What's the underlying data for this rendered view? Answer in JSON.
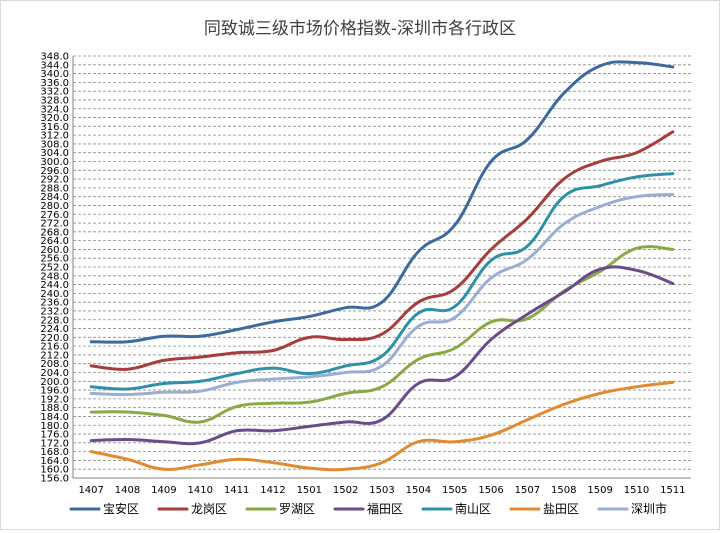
{
  "chart_data": {
    "type": "line",
    "title": "同致诚三级市场价格指数-深圳市各行政区",
    "categories": [
      "1407",
      "1408",
      "1409",
      "1410",
      "1411",
      "1412",
      "1501",
      "1502",
      "1503",
      "1504",
      "1505",
      "1506",
      "1507",
      "1508",
      "1509",
      "1510",
      "1511"
    ],
    "ylim": [
      156,
      348
    ],
    "ystep": 4,
    "grid": "horizontal dashed",
    "legend": "bottom",
    "series": [
      {
        "name": "宝安区",
        "color": "#3c6a9f",
        "values": [
          218,
          218,
          220.5,
          220.5,
          223.5,
          227,
          229.5,
          233.5,
          236,
          259,
          271,
          300,
          310,
          331,
          343.5,
          345,
          343
        ]
      },
      {
        "name": "龙岗区",
        "color": "#a63d3a",
        "values": [
          207,
          205.5,
          209.5,
          211,
          213,
          214,
          220,
          219,
          221.5,
          236,
          242,
          260,
          274,
          292,
          300,
          304,
          313.5
        ]
      },
      {
        "name": "罗湖区",
        "color": "#8aa943",
        "values": [
          186,
          186,
          184.5,
          181.5,
          188.5,
          190,
          190.5,
          194.5,
          197.5,
          210,
          215,
          227,
          228.5,
          241,
          250,
          260.5,
          260
        ]
      },
      {
        "name": "福田区",
        "color": "#6b4b8a",
        "values": [
          173,
          173.5,
          172.5,
          172,
          177.5,
          177.5,
          179.5,
          181.5,
          182.5,
          199,
          202,
          219,
          230.5,
          240.5,
          251,
          250.5,
          244.5
        ]
      },
      {
        "name": "南山区",
        "color": "#2f91a8",
        "values": [
          197.5,
          196.5,
          199,
          200,
          203.5,
          206,
          203.5,
          207,
          211.5,
          231,
          234,
          255,
          261.5,
          284,
          289,
          293,
          294.5
        ]
      },
      {
        "name": "盐田区",
        "color": "#e28a2f",
        "values": [
          168,
          164.5,
          160,
          162,
          164.5,
          163,
          160.5,
          160,
          163,
          172.5,
          172.5,
          175.5,
          182.5,
          189.5,
          194.5,
          197.5,
          199.5
        ]
      },
      {
        "name": "深圳市",
        "color": "#9aaed4",
        "values": [
          194.5,
          194,
          195,
          195.5,
          199.5,
          201,
          202,
          204,
          207,
          225,
          229,
          247,
          255.5,
          271.5,
          279.5,
          284,
          285
        ]
      }
    ]
  }
}
